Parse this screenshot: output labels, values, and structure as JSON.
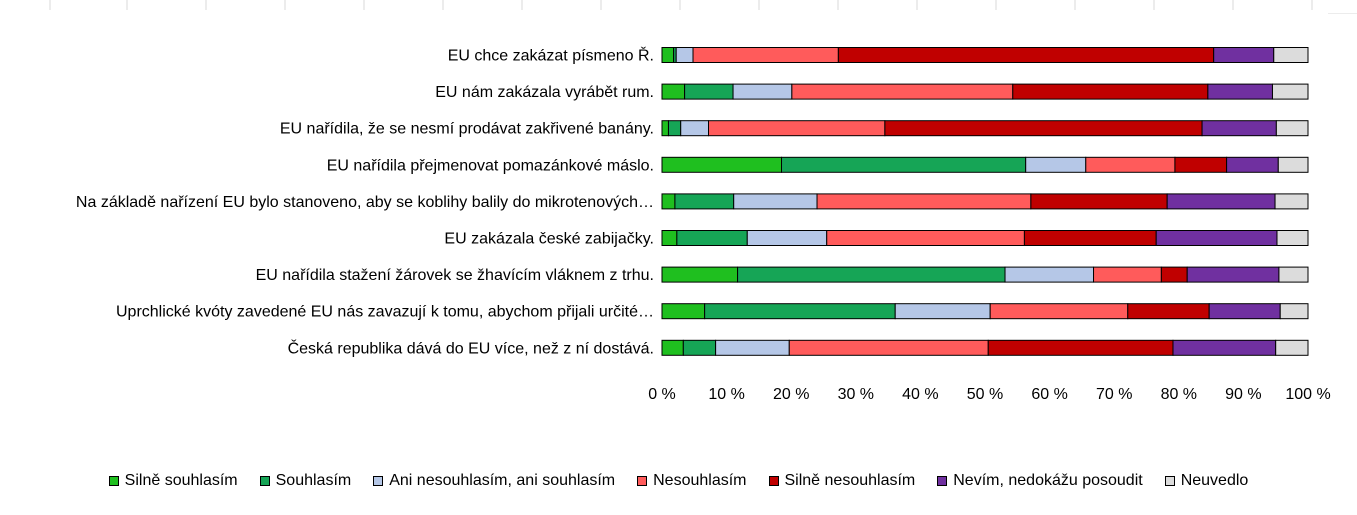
{
  "chart_data": {
    "type": "bar",
    "orientation": "horizontal",
    "stacked": "percent",
    "categories": [
      "EU chce zakázat písmeno Ř.",
      "EU nám zakázala vyrábět rum.",
      "EU nařídila, že se nesmí prodávat zakřivené banány.",
      "EU nařídila přejmenovat pomazánkové máslo.",
      "Na základě nařízení EU bylo stanoveno, aby se koblihy balily do mikrotenových…",
      "EU zakázala české zabijačky.",
      "EU nařídila stažení žárovek se žhavícím vláknem z trhu.",
      "Uprchlické kvóty zavedené EU nás zavazují k tomu, abychom přijali určité…",
      "Česká republika dává do EU více, než z ní dostává."
    ],
    "series": [
      {
        "name": "Silně souhlasím",
        "color": "#1fbf1f",
        "values": [
          1.8,
          3.5,
          1.0,
          18.5,
          2.0,
          2.3,
          11.7,
          6.6,
          3.3
        ]
      },
      {
        "name": "Souhlasím",
        "color": "#16a556",
        "values": [
          0.4,
          7.5,
          1.9,
          37.8,
          9.1,
          10.9,
          41.4,
          29.5,
          5.0
        ]
      },
      {
        "name": "Ani nesouhlasím, ani souhlasím",
        "color": "#b5c7e7",
        "values": [
          2.6,
          9.1,
          4.3,
          9.3,
          12.9,
          12.3,
          13.7,
          14.7,
          11.4
        ]
      },
      {
        "name": "Nesouhlasím",
        "color": "#ff5b5b",
        "values": [
          22.5,
          34.2,
          27.3,
          13.8,
          33.1,
          30.6,
          10.5,
          21.3,
          30.8
        ]
      },
      {
        "name": "Silně nesouhlasím",
        "color": "#c00000",
        "values": [
          58.1,
          30.2,
          49.1,
          8.0,
          21.1,
          20.4,
          4.0,
          12.6,
          28.6
        ]
      },
      {
        "name": "Nevím, nedokážu posoudit",
        "color": "#7030a0",
        "values": [
          9.3,
          10.0,
          11.5,
          8.0,
          16.7,
          18.7,
          14.2,
          11.0,
          15.9
        ]
      },
      {
        "name": "Neuvedlo",
        "color": "#dcdcdc",
        "values": [
          5.3,
          5.5,
          4.9,
          4.6,
          5.1,
          4.8,
          4.5,
          4.3,
          5.0
        ]
      }
    ],
    "xlim": [
      0,
      100
    ],
    "x_ticks": [
      "0 %",
      "10 %",
      "20 %",
      "30 %",
      "40 %",
      "50 %",
      "60 %",
      "70 %",
      "80 %",
      "90 %",
      "100 %"
    ],
    "grid": false,
    "legend_position": "bottom"
  }
}
